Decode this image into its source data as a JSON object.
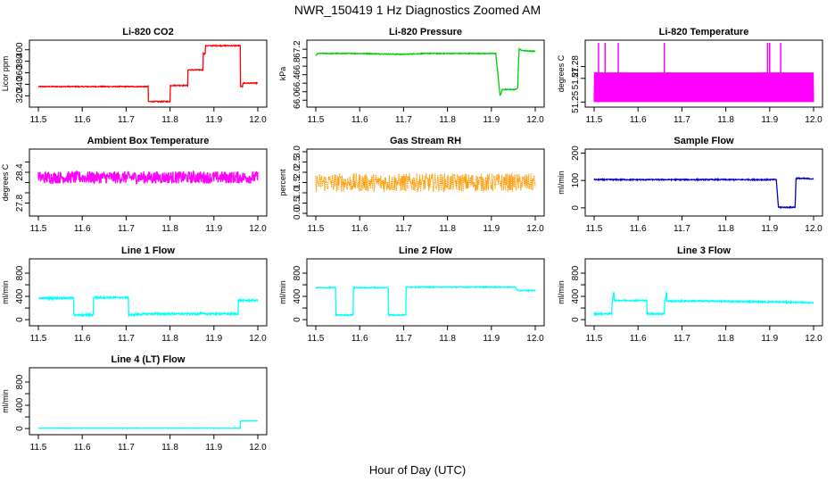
{
  "figure": {
    "title": "NWR_150419  1 Hz Diagnostics Zoomed AM",
    "xlabel": "Hour of Day (UTC)"
  },
  "chart_data": [
    {
      "type": "line",
      "title": "Li-820 CO2",
      "ylabel": "Licor ppm",
      "color": "#ff0000",
      "xlim": [
        11.5,
        12.0
      ],
      "xticks": [
        11.5,
        11.6,
        11.7,
        11.8,
        11.9,
        12.0
      ],
      "xtick_labels": [
        "11.5",
        "11.6",
        "11.7",
        "11.8",
        "11.9",
        "12.0"
      ],
      "ylim": [
        305,
        412
      ],
      "yticks": [
        320,
        340,
        360,
        380,
        400
      ],
      "ytick_labels": [
        "320",
        "340",
        "360",
        "380",
        "400"
      ],
      "noise": 0.8,
      "x": [
        11.5,
        11.75,
        11.75,
        11.765,
        11.765,
        11.8,
        11.8,
        11.805,
        11.805,
        11.84,
        11.84,
        11.845,
        11.845,
        11.875,
        11.875,
        11.88,
        11.88,
        11.955,
        11.955,
        11.96,
        11.96,
        11.965,
        11.965,
        12.0
      ],
      "y": [
        336,
        336,
        310,
        310,
        310,
        310,
        338,
        338,
        338,
        338,
        365,
        365,
        365,
        365,
        393,
        393,
        407,
        407,
        407,
        407,
        336,
        336,
        342,
        342
      ]
    },
    {
      "type": "line",
      "title": "Li-820 Pressure",
      "ylabel": "kPa",
      "color": "#00cc00",
      "xlim": [
        11.5,
        12.0
      ],
      "xticks": [
        11.5,
        11.6,
        11.7,
        11.8,
        11.9,
        12.0
      ],
      "xtick_labels": [
        "11.5",
        "11.6",
        "11.7",
        "11.8",
        "11.9",
        "12.0"
      ],
      "ylim": [
        65.9,
        67.35
      ],
      "yticks": [
        66.0,
        66.2,
        66.4,
        66.6,
        66.8,
        67.0,
        67.2
      ],
      "ytick_labels": [
        "66.0",
        "",
        "66.4",
        "",
        "66.8",
        "",
        "67.2"
      ],
      "noise": 0.01,
      "x": [
        11.5,
        11.505,
        11.6,
        11.7,
        11.75,
        11.8,
        11.91,
        11.915,
        11.92,
        11.925,
        11.955,
        11.96,
        11.963,
        11.97,
        12.0
      ],
      "y": [
        67.05,
        67.1,
        67.1,
        67.08,
        67.1,
        67.1,
        67.1,
        66.6,
        66.1,
        66.25,
        66.25,
        66.3,
        67.2,
        67.17,
        67.15
      ]
    },
    {
      "type": "line",
      "title": "Li-820 Temperature",
      "ylabel": "degrees C",
      "color": "#ff00ff",
      "xlim": [
        11.5,
        12.0
      ],
      "xticks": [
        11.5,
        11.6,
        11.7,
        11.8,
        11.9,
        12.0
      ],
      "xtick_labels": [
        "11.5",
        "11.6",
        "11.7",
        "11.8",
        "11.9",
        "12.0"
      ],
      "ylim": [
        51.248,
        51.3
      ],
      "yticks": [
        51.25,
        51.27,
        51.28
      ],
      "ytick_labels": [
        "51.25",
        "51.27",
        "51.28"
      ],
      "osc": [
        51.25,
        51.275
      ],
      "spikes_x": [
        11.51,
        11.525,
        11.555,
        11.66,
        11.895,
        11.9,
        11.925
      ],
      "spike_y": 51.3
    },
    {
      "type": "line",
      "title": "Ambient Box Temperature",
      "ylabel": "degrees C",
      "color": "#ff00ff",
      "xlim": [
        11.5,
        12.0
      ],
      "xticks": [
        11.5,
        11.6,
        11.7,
        11.8,
        11.9,
        12.0
      ],
      "xtick_labels": [
        "11.5",
        "11.6",
        "11.7",
        "11.8",
        "11.9",
        "12.0"
      ],
      "ylim": [
        27.6,
        28.8
      ],
      "yticks": [
        27.8,
        28.0,
        28.2,
        28.4,
        28.6
      ],
      "ytick_labels": [
        "27.8",
        "",
        "",
        "28.4",
        ""
      ],
      "mean": 28.3,
      "noise": 0.12,
      "x": [
        11.5,
        12.0
      ],
      "y": [
        28.3,
        28.3
      ]
    },
    {
      "type": "line",
      "title": "Gas Stream RH",
      "ylabel": "percent",
      "color": "#ff9900",
      "xlim": [
        11.5,
        12.0
      ],
      "xticks": [
        11.5,
        11.6,
        11.7,
        11.8,
        11.9,
        12.0
      ],
      "xtick_labels": [
        "11.5",
        "11.6",
        "11.7",
        "11.8",
        "11.9",
        "12.0"
      ],
      "ylim": [
        0,
        3.0
      ],
      "yticks": [
        0.0,
        0.5,
        1.0,
        1.5,
        2.0,
        2.5,
        3.0
      ],
      "ytick_labels": [
        "0.0",
        "0.5",
        "1.0",
        "1.5",
        "2.0",
        "2.5",
        "3.0"
      ],
      "mean": 1.5,
      "noise": 0.45,
      "x": [
        11.5,
        12.0
      ],
      "y": [
        1.5,
        1.5
      ]
    },
    {
      "type": "line",
      "title": "Sample Flow",
      "ylabel": "ml/min",
      "color": "#0000cc",
      "xlim": [
        11.5,
        12.0
      ],
      "xticks": [
        11.5,
        11.6,
        11.7,
        11.8,
        11.9,
        12.0
      ],
      "xtick_labels": [
        "11.5",
        "11.6",
        "11.7",
        "11.8",
        "11.9",
        "12.0"
      ],
      "ylim": [
        -20,
        205
      ],
      "yticks": [
        0,
        100,
        200
      ],
      "ytick_labels": [
        "0",
        "100",
        "200"
      ],
      "noise": 2,
      "x": [
        11.5,
        11.915,
        11.92,
        11.958,
        11.96,
        12.0
      ],
      "y": [
        103,
        103,
        2,
        2,
        108,
        106
      ]
    },
    {
      "type": "line",
      "title": "Line 1 Flow",
      "ylabel": "ml/min",
      "color": "#00ffff",
      "xlim": [
        11.5,
        12.0
      ],
      "xticks": [
        11.5,
        11.6,
        11.7,
        11.8,
        11.9,
        12.0
      ],
      "xtick_labels": [
        "11.5",
        "11.6",
        "11.7",
        "11.8",
        "11.9",
        "12.0"
      ],
      "ylim": [
        -60,
        1000
      ],
      "yticks": [
        0,
        200,
        400,
        600,
        800
      ],
      "ytick_labels": [
        "0",
        "400",
        "800"
      ],
      "ytick_labels_all": [
        "0",
        "",
        "400",
        "",
        "800"
      ],
      "noise": 15,
      "x": [
        11.5,
        11.58,
        11.58,
        11.625,
        11.625,
        11.705,
        11.705,
        11.75,
        11.955,
        11.955,
        12.0
      ],
      "y": [
        370,
        370,
        80,
        80,
        380,
        380,
        80,
        100,
        100,
        330,
        330
      ]
    },
    {
      "type": "line",
      "title": "Line 2 Flow",
      "ylabel": "ml/min",
      "color": "#00ffff",
      "xlim": [
        11.5,
        12.0
      ],
      "xticks": [
        11.5,
        11.6,
        11.7,
        11.8,
        11.9,
        12.0
      ],
      "xtick_labels": [
        "11.5",
        "11.6",
        "11.7",
        "11.8",
        "11.9",
        "12.0"
      ],
      "ylim": [
        -60,
        1000
      ],
      "yticks": [
        0,
        200,
        400,
        600,
        800
      ],
      "ytick_labels_all": [
        "0",
        "",
        "400",
        "",
        "800"
      ],
      "noise": 8,
      "x": [
        11.5,
        11.545,
        11.545,
        11.585,
        11.585,
        11.665,
        11.665,
        11.705,
        11.705,
        11.955,
        11.96,
        12.0
      ],
      "y": [
        550,
        550,
        80,
        80,
        550,
        550,
        80,
        80,
        560,
        560,
        500,
        500
      ]
    },
    {
      "type": "line",
      "title": "Line 3 Flow",
      "ylabel": "ml/min",
      "color": "#00ffff",
      "xlim": [
        11.5,
        12.0
      ],
      "xticks": [
        11.5,
        11.6,
        11.7,
        11.8,
        11.9,
        12.0
      ],
      "xtick_labels": [
        "11.5",
        "11.6",
        "11.7",
        "11.8",
        "11.9",
        "12.0"
      ],
      "ylim": [
        -60,
        1000
      ],
      "yticks": [
        0,
        200,
        400,
        600,
        800
      ],
      "ytick_labels_all": [
        "0",
        "",
        "400",
        "",
        "800"
      ],
      "noise": 12,
      "x": [
        11.5,
        11.54,
        11.54,
        11.545,
        11.545,
        11.62,
        11.62,
        11.66,
        11.66,
        11.665,
        11.665,
        11.75,
        11.95,
        12.0
      ],
      "y": [
        100,
        100,
        250,
        480,
        330,
        330,
        100,
        100,
        250,
        480,
        320,
        320,
        300,
        290
      ]
    },
    {
      "type": "line",
      "title": "Line 4 (LT) Flow",
      "ylabel": "ml/min",
      "color": "#00ffff",
      "xlim": [
        11.5,
        12.0
      ],
      "xticks": [
        11.5,
        11.6,
        11.7,
        11.8,
        11.9,
        12.0
      ],
      "xtick_labels": [
        "11.5",
        "11.6",
        "11.7",
        "11.8",
        "11.9",
        "12.0"
      ],
      "ylim": [
        -60,
        1000
      ],
      "yticks": [
        0,
        200,
        400,
        600,
        800
      ],
      "ytick_labels_all": [
        "0",
        "",
        "400",
        "",
        "800"
      ],
      "noise": 3,
      "x": [
        11.5,
        11.96,
        11.96,
        12.0
      ],
      "y": [
        5,
        5,
        130,
        130
      ]
    }
  ]
}
